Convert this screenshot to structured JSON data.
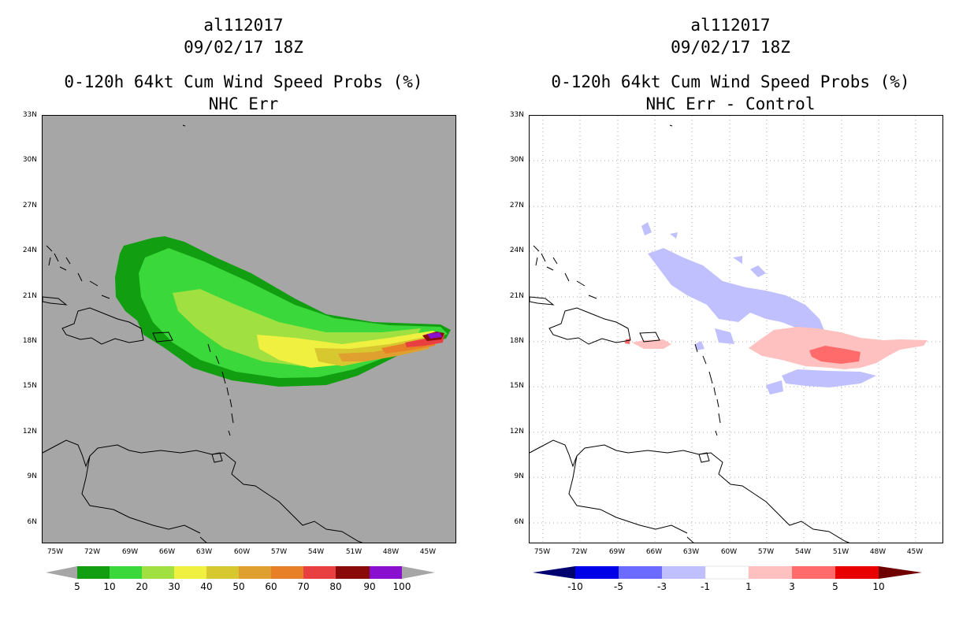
{
  "colors": {
    "background_left": "#a6a6a6",
    "land_outline": "#000000",
    "prob_bins": [
      "#119e11",
      "#3ad83a",
      "#a0e040",
      "#f0f040",
      "#d8c830",
      "#e0a030",
      "#e88028",
      "#e84040",
      "#8a0a0a",
      "#8a10d0"
    ],
    "diff_bins": [
      "#00006e",
      "#0000e8",
      "#6b6bff",
      "#c0c0ff",
      "#ffffff",
      "#ffc0c0",
      "#ff6b6b",
      "#e80000",
      "#6e0000"
    ]
  },
  "left": {
    "line1": "al112017",
    "line2": "09/02/17 18Z",
    "line3": "0-120h 64kt Cum Wind Speed Probs (%)",
    "line4": "NHC Err",
    "lat_labels": [
      "33N",
      "30N",
      "27N",
      "24N",
      "21N",
      "18N",
      "15N",
      "12N",
      "9N",
      "6N"
    ],
    "lon_labels": [
      "75W",
      "72W",
      "69W",
      "66W",
      "63W",
      "60W",
      "57W",
      "54W",
      "51W",
      "48W",
      "45W"
    ],
    "colorbar_labels": [
      "5",
      "10",
      "20",
      "30",
      "40",
      "50",
      "60",
      "70",
      "80",
      "90",
      "100"
    ]
  },
  "right": {
    "line1": "al112017",
    "line2": "09/02/17 18Z",
    "line3": "0-120h 64kt Cum Wind Speed Probs (%)",
    "line4": "NHC Err - Control",
    "lat_labels": [
      "33N",
      "30N",
      "27N",
      "24N",
      "21N",
      "18N",
      "15N",
      "12N",
      "9N",
      "6N"
    ],
    "lon_labels": [
      "75W",
      "72W",
      "69W",
      "66W",
      "63W",
      "60W",
      "57W",
      "54W",
      "51W",
      "48W",
      "45W"
    ],
    "colorbar_labels": [
      "-10",
      "-5",
      "-3",
      "-1",
      "1",
      "3",
      "5",
      "10"
    ]
  }
}
